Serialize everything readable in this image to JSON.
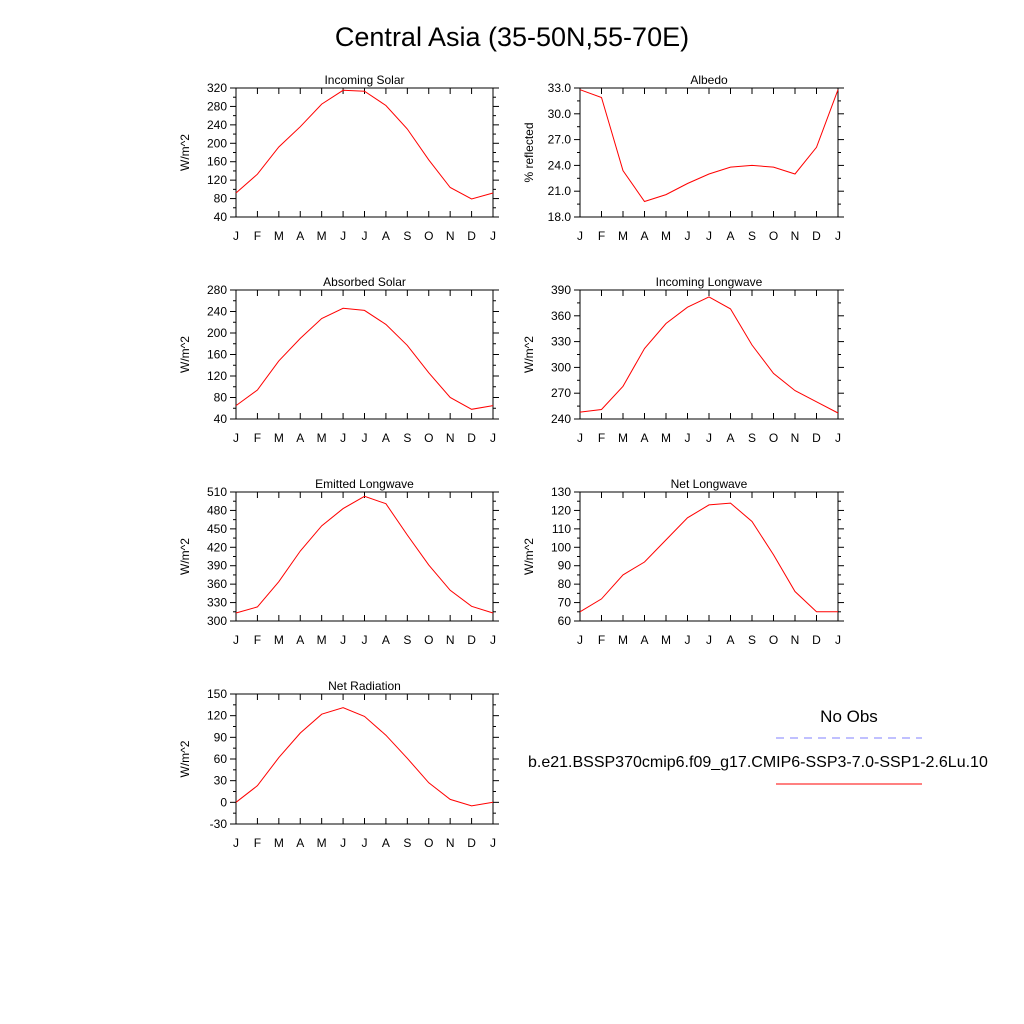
{
  "figure": {
    "title": "Central Asia (35-50N,55-70E)"
  },
  "legend": {
    "obs_label": "No Obs",
    "obs_color": "#8080ff",
    "case_label": "b.e21.BSSP370cmip6.f09_g17.CMIP6-SSP3-7.0-SSP1-2.6Lu.10",
    "case_color": "#ff0000"
  },
  "chart_data": [
    {
      "type": "line",
      "title": "Incoming Solar",
      "ylabel": "W/m^2",
      "x": [
        "J",
        "F",
        "M",
        "A",
        "M",
        "J",
        "J",
        "A",
        "S",
        "O",
        "N",
        "D",
        "J"
      ],
      "ylim": [
        40,
        320
      ],
      "yticks": [
        "320",
        "280",
        "240",
        "200",
        "160",
        "120",
        "80",
        "40"
      ],
      "series": [
        {
          "values": [
            92,
            133,
            192,
            236,
            285,
            315,
            313,
            282,
            231,
            164,
            104,
            79,
            92
          ]
        }
      ]
    },
    {
      "type": "line",
      "title": "Albedo",
      "ylabel": "% reflected",
      "x": [
        "J",
        "F",
        "M",
        "A",
        "M",
        "J",
        "J",
        "A",
        "S",
        "O",
        "N",
        "D",
        "J"
      ],
      "ylim": [
        18.0,
        33.0
      ],
      "yticks": [
        "33.0",
        "30.0",
        "27.0",
        "24.0",
        "21.0",
        "18.0"
      ],
      "series": [
        {
          "values": [
            32.8,
            31.9,
            23.4,
            19.8,
            20.6,
            21.9,
            23.0,
            23.8,
            24.0,
            23.8,
            23.0,
            26.1,
            32.8
          ]
        }
      ]
    },
    {
      "type": "line",
      "title": "Absorbed Solar",
      "ylabel": "W/m^2",
      "x": [
        "J",
        "F",
        "M",
        "A",
        "M",
        "J",
        "J",
        "A",
        "S",
        "O",
        "N",
        "D",
        "J"
      ],
      "ylim": [
        40,
        280
      ],
      "yticks": [
        "280",
        "240",
        "200",
        "160",
        "120",
        "80",
        "40"
      ],
      "series": [
        {
          "values": [
            65,
            94,
            148,
            190,
            227,
            246,
            242,
            216,
            177,
            126,
            80,
            58,
            65
          ]
        }
      ]
    },
    {
      "type": "line",
      "title": "Incoming Longwave",
      "ylabel": "W/m^2",
      "x": [
        "J",
        "F",
        "M",
        "A",
        "M",
        "J",
        "J",
        "A",
        "S",
        "O",
        "N",
        "D",
        "J"
      ],
      "ylim": [
        240,
        390
      ],
      "yticks": [
        "390",
        "360",
        "330",
        "300",
        "270",
        "240"
      ],
      "series": [
        {
          "values": [
            248,
            251,
            278,
            322,
            351,
            370,
            382,
            368,
            326,
            293,
            273,
            260,
            247
          ]
        }
      ]
    },
    {
      "type": "line",
      "title": "Emitted Longwave",
      "ylabel": "W/m^2",
      "x": [
        "J",
        "F",
        "M",
        "A",
        "M",
        "J",
        "J",
        "A",
        "S",
        "O",
        "N",
        "D",
        "J"
      ],
      "ylim": [
        300,
        510
      ],
      "yticks": [
        "510",
        "480",
        "450",
        "420",
        "390",
        "360",
        "330",
        "300"
      ],
      "series": [
        {
          "values": [
            313,
            323,
            364,
            414,
            455,
            483,
            503,
            491,
            440,
            391,
            350,
            324,
            313
          ]
        }
      ]
    },
    {
      "type": "line",
      "title": "Net Longwave",
      "ylabel": "W/m^2",
      "x": [
        "J",
        "F",
        "M",
        "A",
        "M",
        "J",
        "J",
        "A",
        "S",
        "O",
        "N",
        "D",
        "J"
      ],
      "ylim": [
        60,
        130
      ],
      "yticks": [
        "130",
        "120",
        "110",
        "100",
        "90",
        "80",
        "70",
        "60"
      ],
      "series": [
        {
          "values": [
            65,
            72,
            85,
            92,
            104,
            116,
            123,
            124,
            114,
            96,
            76,
            65,
            65
          ]
        }
      ]
    },
    {
      "type": "line",
      "title": "Net Radiation",
      "ylabel": "W/m^2",
      "x": [
        "J",
        "F",
        "M",
        "A",
        "M",
        "J",
        "J",
        "A",
        "S",
        "O",
        "N",
        "D",
        "J"
      ],
      "ylim": [
        -30,
        150
      ],
      "yticks": [
        "150",
        "120",
        "90",
        "60",
        "30",
        "0",
        "-30"
      ],
      "series": [
        {
          "values": [
            0,
            23,
            62,
            96,
            122,
            131,
            119,
            93,
            61,
            27,
            4,
            -5,
            0
          ]
        }
      ]
    }
  ]
}
